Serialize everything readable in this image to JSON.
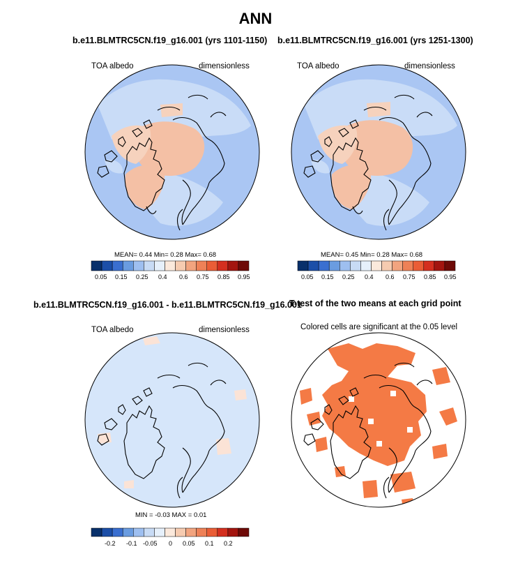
{
  "title": "ANN",
  "colors": {
    "scale": [
      "#08306b",
      "#1c4fa8",
      "#3a6fd0",
      "#6a9ce0",
      "#9ebff0",
      "#c8dbf5",
      "#e6f0fb",
      "#fbe9dc",
      "#f6cbb0",
      "#f2a47f",
      "#ee8157",
      "#ea5d36",
      "#d42f1f",
      "#a3150f",
      "#6e0a07"
    ],
    "ocean_light": "#aac6f3",
    "ocean_mid": "#c9dcf7",
    "warm_light": "#f6d2bd",
    "warm_mid": "#f4c0a5",
    "diff_bg": "#d6e6fa",
    "diff_warm": "#fbe3d6",
    "signif": "#f47a45"
  },
  "panels": [
    {
      "title": "b.e11.BLMTRC5CN.f19_g16.001 (yrs 1101-1150)",
      "left_label": "TOA albedo",
      "right_label": "dimensionless",
      "stats": "MEAN=   0.44  Min=   0.28  Max=   0.68",
      "colorbar_ticks": [
        "0.05",
        "0.15",
        "0.25",
        "0.4",
        "0.6",
        "0.75",
        "0.85",
        "0.95"
      ]
    },
    {
      "title": "b.e11.BLMTRC5CN.f19_g16.001 (yrs 1251-1300)",
      "left_label": "TOA albedo",
      "right_label": "dimensionless",
      "stats": "MEAN=   0.45  Min=   0.28  Max=   0.68",
      "colorbar_ticks": [
        "0.05",
        "0.15",
        "0.25",
        "0.4",
        "0.6",
        "0.75",
        "0.85",
        "0.95"
      ]
    },
    {
      "title": "b.e11.BLMTRC5CN.f19_g16.001 - b.e11.BLMTRC5CN.f19_g16.001",
      "left_label": "TOA albedo",
      "right_label": "dimensionless",
      "stats": "MIN =  -0.03 MAX =   0.01",
      "colorbar_ticks": [
        "-0.2",
        "-0.1",
        "-0.05",
        "0",
        "0.05",
        "0.1",
        "0.2"
      ]
    },
    {
      "title": "T-test of the two means at each grid point",
      "subtitle": "Colored cells are significant at the 0.05 level"
    }
  ]
}
